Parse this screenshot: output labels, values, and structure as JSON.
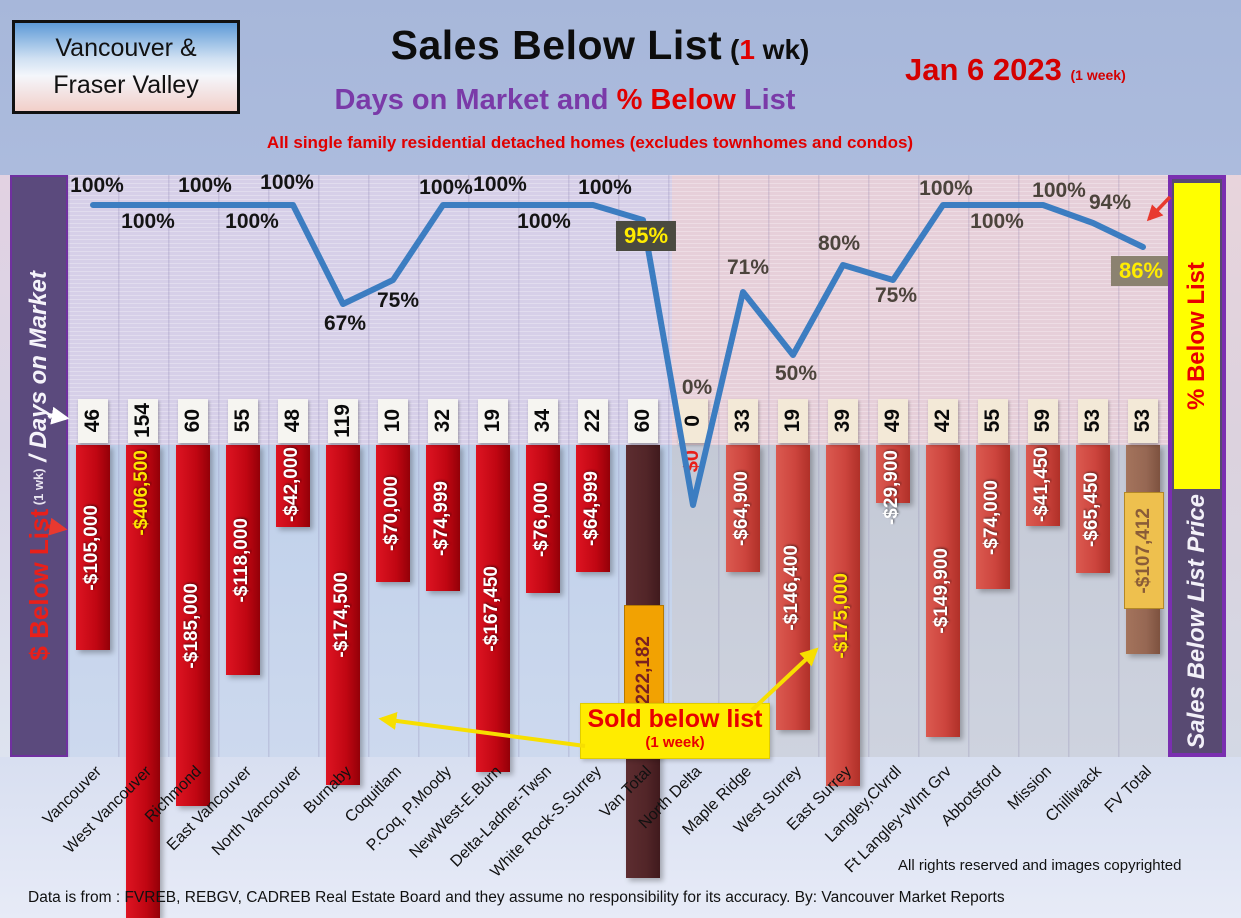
{
  "header": {
    "region_line1": "Vancouver &",
    "region_line2": "Fraser Valley",
    "title": "Sales Below List",
    "title_paren_open": " (",
    "title_wk_num": "1",
    "title_wk_rest": " wk)",
    "date": "Jan 6  2023",
    "date_note": "(1 week)",
    "subtitle_p1": "Days on Market and ",
    "subtitle_p2": "% Below ",
    "subtitle_p3": "List",
    "tagline": "All single family residential detached homes (excludes townhomes and condos)"
  },
  "left_axis": {
    "dollar": "$ Below List",
    "wk": " (1 wk)",
    "days": " / Days on Market"
  },
  "right_axis": {
    "top": "% Below List",
    "bottom": "Sales Below List Price"
  },
  "callout": {
    "line1": "Sold below list",
    "line2": "(1 week)"
  },
  "footer": {
    "rights": "All rights reserved and  images copyrighted",
    "source": "Data is from : FVREB, REBGV, CADREB Real Estate Board and they assume no responsibility for its accuracy. By: Vancouver Market Reports"
  },
  "chart_data": {
    "type": "combo bar+line",
    "title": "Sales Below List (1 wk) — Days on Market and % Below List",
    "date": "Jan 6 2023 (1 week)",
    "categories": [
      "Vancouver",
      "West Vancouver",
      "Richmond",
      "East Vancouver",
      "North Vancouver",
      "Burnaby",
      "Coquitlam",
      "P.Coq, P.Moody",
      "NewWest-E.Burn",
      "Delta-Ladner-Twsn",
      "White Rock-S.Surrey",
      "Van Total",
      "North Delta",
      "Maple Ridge",
      "West Surrey",
      "East Surrey",
      "Langley,Clvrdl",
      "Ft Langley-WInt Grv",
      "Abbotsford",
      "Mission",
      "Chilliwack",
      "FV Total"
    ],
    "series": [
      {
        "name": "Days on Market",
        "values": [
          46,
          154,
          60,
          55,
          48,
          119,
          10,
          32,
          19,
          34,
          22,
          60,
          0,
          33,
          19,
          39,
          49,
          42,
          55,
          59,
          53,
          53
        ]
      },
      {
        "name": "$ Below List (1 wk)",
        "type": "bar",
        "values": [
          -105000,
          -406500,
          -185000,
          -118000,
          -42000,
          -174500,
          -70000,
          -74999,
          -167450,
          -76000,
          -64999,
          -222182,
          0,
          -64900,
          -146400,
          -175000,
          -29900,
          -149900,
          -74000,
          -41450,
          -65450,
          -107412
        ],
        "labels": [
          "-$105,000",
          "-$406,500",
          "-$185,000",
          "-$118,000",
          "-$42,000",
          "-$174,500",
          "-$70,000",
          "-$74,999",
          "-$167,450",
          "-$76,000",
          "-$64,999",
          "-$222,182",
          "$0",
          "-$64,900",
          "-$146,400",
          "-$175,000",
          "-$29,900",
          "-$149,900",
          "-$74,000",
          "-$41,450",
          "-$65,450",
          "-$107,412"
        ]
      },
      {
        "name": "% Below List",
        "type": "line",
        "values": [
          100,
          100,
          100,
          100,
          100,
          67,
          75,
          100,
          100,
          100,
          100,
          95,
          0,
          71,
          50,
          80,
          75,
          100,
          100,
          100,
          94,
          86
        ],
        "labels": [
          "100%",
          "100%",
          "100%",
          "100%",
          "100%",
          "67%",
          "75%",
          "100%",
          "100%",
          "100%",
          "100%",
          "95%",
          "0%",
          "71%",
          "50%",
          "80%",
          "75%",
          "100%",
          "100%",
          "100%",
          "94%",
          "86%"
        ]
      }
    ],
    "colors": {
      "bar_red_left": "#c8101e",
      "bar_red_right": "#d14b44",
      "bar_van_total": "#57282c",
      "bar_fv_total": "#9a6a50",
      "van_total_label_box": "#f2a202",
      "fv_total_label_box": "#eec04e",
      "line": "#3c7dc1",
      "pct_box_95": "#4a4a40",
      "pct_box_86": "#8b8270",
      "highlight_yellow": "#ffe400"
    },
    "layout_hints": {
      "left_region_background": "lavender",
      "right_region_background": "pink",
      "grid": "faint vertical category lines + horizontal pinstripes"
    }
  }
}
